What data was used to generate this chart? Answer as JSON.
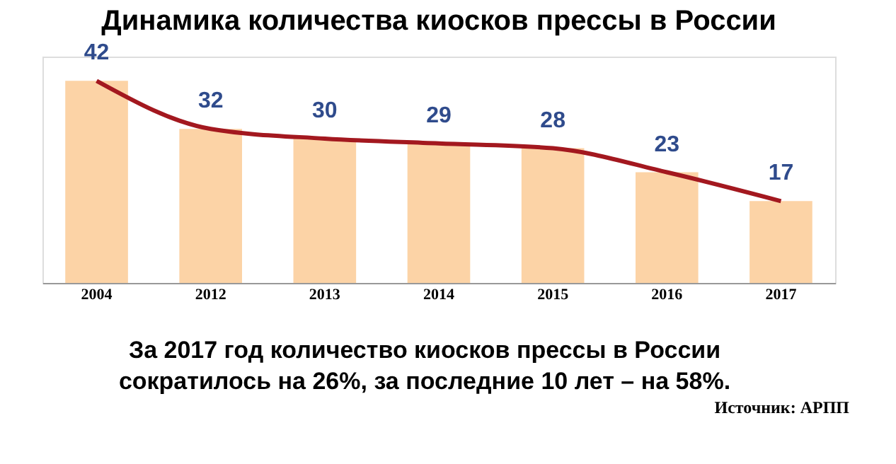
{
  "chart_data": {
    "type": "bar",
    "title": "Динамика количества киосков прессы в России",
    "categories": [
      "2004",
      "2012",
      "2013",
      "2014",
      "2015",
      "2016",
      "2017"
    ],
    "series": [
      {
        "color": "#fcd3a6",
        "values": [
          42,
          32,
          30,
          29,
          28,
          23,
          17
        ]
      },
      {
        "type": "line",
        "color": "#a3181f",
        "values": [
          42,
          32,
          30,
          29,
          28,
          23,
          17
        ],
        "value_labels": [
          null,
          null,
          null,
          null,
          null,
          null,
          null
        ]
      }
    ],
    "data_labels": true,
    "grid": false,
    "tick_labels": "x",
    "annotations": [
      "За 2017 год  количество киосков прессы в России",
      "сократилось  на 26%,  за последние 10 лет  – на 58%.",
      "Источник: АРПП"
    ]
  }
}
